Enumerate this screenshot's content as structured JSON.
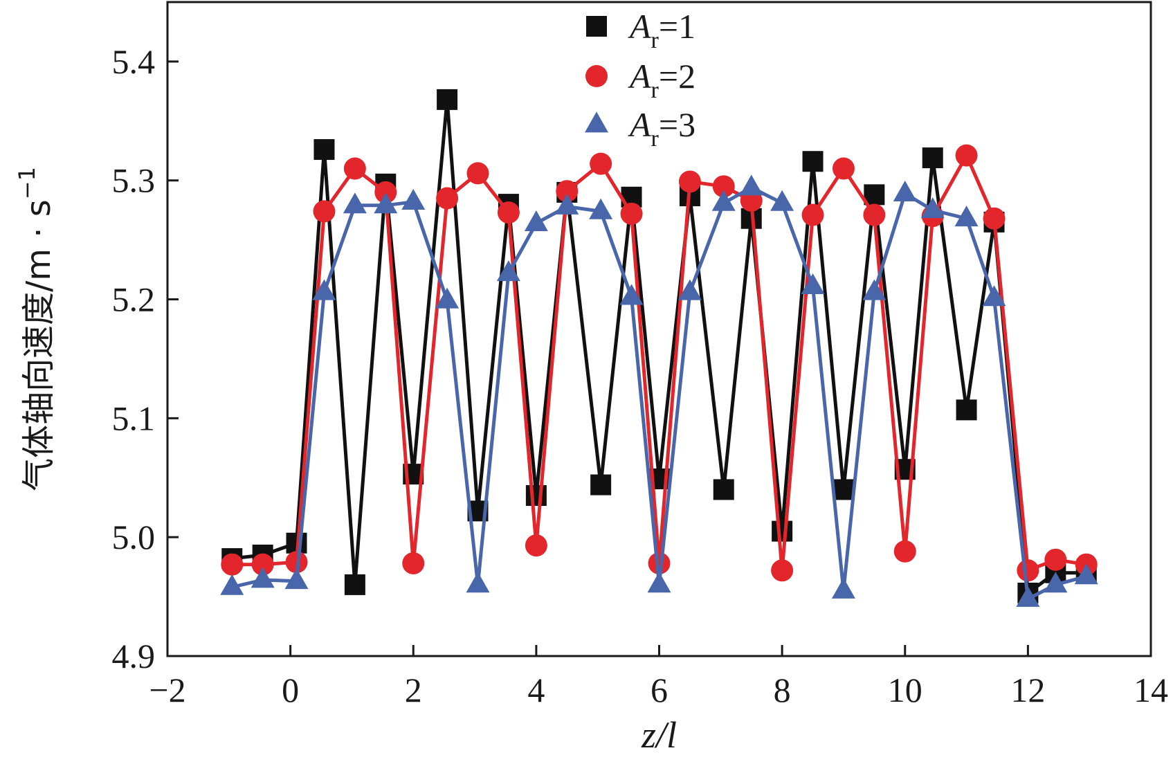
{
  "chart_data": {
    "type": "line",
    "title": "",
    "xlabel": {
      "italic_main": "z/l"
    },
    "ylabel": {
      "main": "气体轴向速度/m · s",
      "superscript": "−1"
    },
    "xlim": [
      -2,
      14
    ],
    "ylim": [
      4.9,
      5.45
    ],
    "xticks": [
      -2,
      0,
      2,
      4,
      6,
      8,
      10,
      12,
      14
    ],
    "xtick_labels": [
      "−2",
      "0",
      "2",
      "4",
      "6",
      "8",
      "10",
      "12",
      "14"
    ],
    "yticks": [
      4.9,
      5.0,
      5.1,
      5.2,
      5.3,
      5.4
    ],
    "ytick_labels": [
      "4.9",
      "5.0",
      "5.1",
      "5.2",
      "5.3",
      "5.4"
    ],
    "grid": false,
    "legend_position": "top-center",
    "series": [
      {
        "name": "Ar=1",
        "legend_var": "A",
        "legend_sub": "r",
        "legend_value": "=1",
        "marker": "square",
        "color": "#111111",
        "points": [
          [
            -0.95,
            4.982
          ],
          [
            -0.45,
            4.985
          ],
          [
            0.1,
            4.995
          ],
          [
            0.55,
            5.326
          ],
          [
            1.05,
            4.96
          ],
          [
            1.55,
            5.297
          ],
          [
            2.0,
            5.053
          ],
          [
            2.55,
            5.368
          ],
          [
            3.05,
            5.022
          ],
          [
            3.55,
            5.28
          ],
          [
            4.0,
            5.035
          ],
          [
            4.5,
            5.29
          ],
          [
            5.05,
            5.044
          ],
          [
            5.55,
            5.286
          ],
          [
            6.0,
            5.049
          ],
          [
            6.5,
            5.287
          ],
          [
            7.05,
            5.04
          ],
          [
            7.5,
            5.268
          ],
          [
            8.0,
            5.005
          ],
          [
            8.5,
            5.316
          ],
          [
            9.0,
            5.04
          ],
          [
            9.5,
            5.288
          ],
          [
            10.0,
            5.057
          ],
          [
            10.45,
            5.319
          ],
          [
            11.0,
            5.107
          ],
          [
            11.45,
            5.265
          ],
          [
            12.0,
            4.953
          ],
          [
            12.45,
            4.97
          ],
          [
            12.95,
            4.97
          ]
        ]
      },
      {
        "name": "Ar=2",
        "legend_var": "A",
        "legend_sub": "r",
        "legend_value": "=2",
        "marker": "circle",
        "color": "#e3262b",
        "points": [
          [
            -0.95,
            4.977
          ],
          [
            -0.45,
            4.977
          ],
          [
            0.1,
            4.979
          ],
          [
            0.55,
            5.274
          ],
          [
            1.05,
            5.31
          ],
          [
            1.55,
            5.29
          ],
          [
            2.0,
            4.978
          ],
          [
            2.55,
            5.285
          ],
          [
            3.05,
            5.306
          ],
          [
            3.55,
            5.273
          ],
          [
            4.0,
            4.993
          ],
          [
            4.5,
            5.291
          ],
          [
            5.05,
            5.314
          ],
          [
            5.55,
            5.272
          ],
          [
            6.0,
            4.978
          ],
          [
            6.5,
            5.299
          ],
          [
            7.05,
            5.295
          ],
          [
            7.5,
            5.283
          ],
          [
            8.0,
            4.972
          ],
          [
            8.5,
            5.271
          ],
          [
            9.0,
            5.31
          ],
          [
            9.5,
            5.271
          ],
          [
            10.0,
            4.988
          ],
          [
            10.45,
            5.27
          ],
          [
            11.0,
            5.321
          ],
          [
            11.45,
            5.268
          ],
          [
            12.0,
            4.972
          ],
          [
            12.45,
            4.981
          ],
          [
            12.95,
            4.977
          ]
        ]
      },
      {
        "name": "Ar=3",
        "legend_var": "A",
        "legend_sub": "r",
        "legend_value": "=3",
        "marker": "triangle",
        "color": "#4a66aa",
        "points": [
          [
            -0.95,
            4.958
          ],
          [
            -0.45,
            4.964
          ],
          [
            0.1,
            4.963
          ],
          [
            0.55,
            5.206
          ],
          [
            1.05,
            5.279
          ],
          [
            1.55,
            5.279
          ],
          [
            2.0,
            5.282
          ],
          [
            2.55,
            5.199
          ],
          [
            3.05,
            4.96
          ],
          [
            3.55,
            5.222
          ],
          [
            4.0,
            5.264
          ],
          [
            4.5,
            5.278
          ],
          [
            5.05,
            5.274
          ],
          [
            5.55,
            5.202
          ],
          [
            6.0,
            4.96
          ],
          [
            6.5,
            5.206
          ],
          [
            7.05,
            5.281
          ],
          [
            7.5,
            5.294
          ],
          [
            8.0,
            5.281
          ],
          [
            8.5,
            5.211
          ],
          [
            9.0,
            4.955
          ],
          [
            9.5,
            5.206
          ],
          [
            10.0,
            5.289
          ],
          [
            10.45,
            5.275
          ],
          [
            11.0,
            5.268
          ],
          [
            11.45,
            5.201
          ],
          [
            12.0,
            4.948
          ],
          [
            12.45,
            4.96
          ],
          [
            12.95,
            4.967
          ]
        ]
      }
    ]
  }
}
